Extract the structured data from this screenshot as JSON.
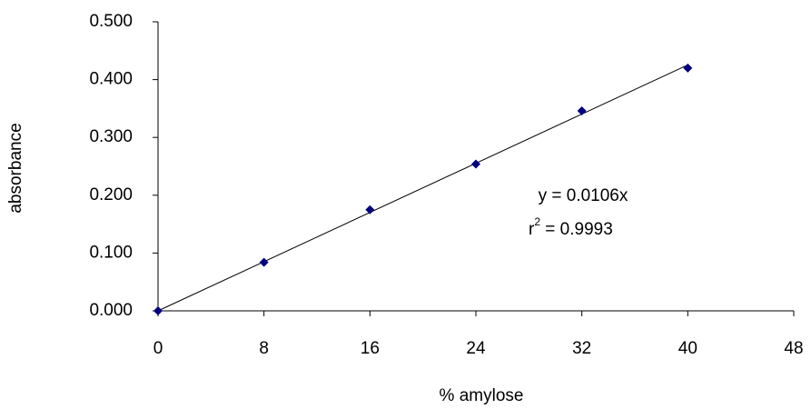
{
  "chart_data": {
    "type": "scatter",
    "x_label": "% amylose",
    "y_label": "absorbance",
    "x": [
      0,
      8,
      16,
      24,
      32,
      40
    ],
    "series": [
      {
        "color": "#000080",
        "values": [
          0.0,
          0.084,
          0.175,
          0.254,
          0.346,
          0.42
        ]
      }
    ],
    "trendline": true,
    "annotations": {
      "equation": "y = 0.0106x",
      "r_symbol": "r",
      "r_power": "2",
      "r_value": " = 0.9993"
    },
    "xlim": [
      0,
      48
    ],
    "xticks": [
      0,
      8,
      16,
      24,
      32,
      40,
      48
    ],
    "ylim": [
      0,
      0.5
    ],
    "yticks": [
      {
        "value": 0,
        "label": "0.000"
      },
      {
        "value": 0.1,
        "label": "0.100"
      },
      {
        "value": 0.2,
        "label": "0.200"
      },
      {
        "value": 0.3,
        "label": "0.300"
      },
      {
        "value": 0.4,
        "label": "0.400"
      },
      {
        "value": 0.5,
        "label": "0.500"
      }
    ]
  }
}
